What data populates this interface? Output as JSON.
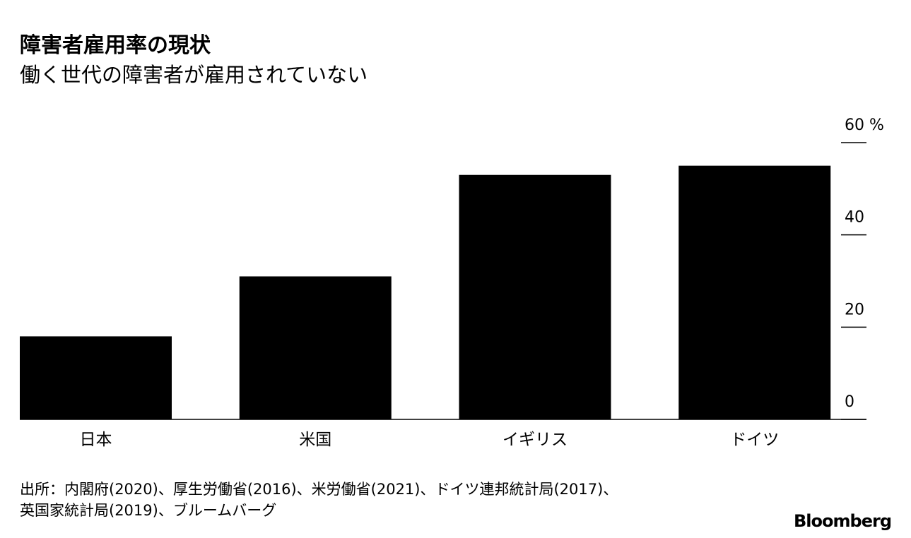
{
  "chart_data": {
    "type": "bar",
    "title": "障害者雇用率の現状",
    "subtitle": "働く世代の障害者が雇用されていない",
    "categories": [
      "日本",
      "米国",
      "イギリス",
      "ドイツ"
    ],
    "values": [
      18,
      31,
      53,
      55
    ],
    "color": "#000000",
    "ylim": [
      0,
      60
    ],
    "yticks": [
      0,
      20,
      40,
      {
        "value": 60,
        "label": "60 %"
      }
    ],
    "source": [
      "出所：内閣府(2020)、厚生労働省(2016)、米労働省(2021)、ドイツ連邦統計局(2017)、",
      "英国家統計局(2019)、ブルームバーグ"
    ],
    "logo": "Bloomberg"
  }
}
